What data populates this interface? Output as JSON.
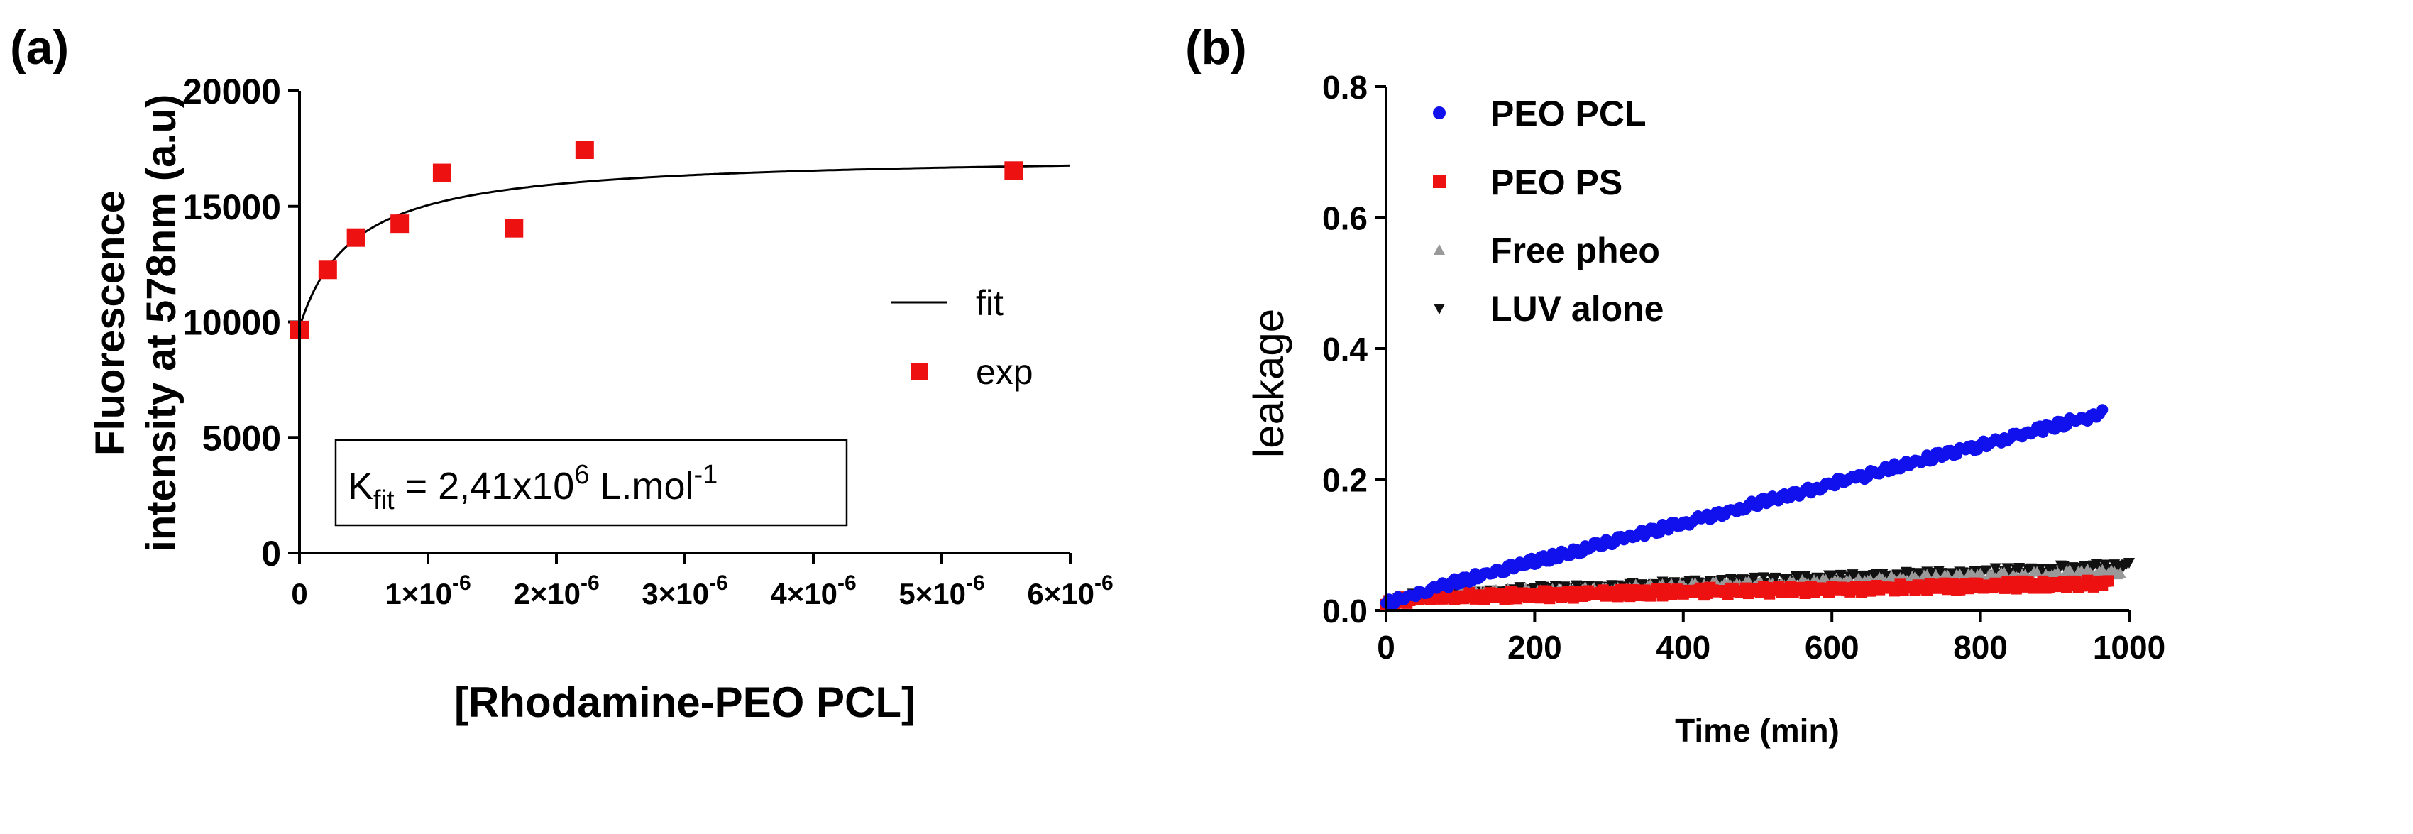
{
  "chart_data": [
    {
      "panel_label": "(a)",
      "type": "scatter",
      "xlabel": "[Rhodamine-PEO PCL]",
      "ylabel_line1": "Fluorescence",
      "ylabel_line2": "intensity at 578nm (a.u)",
      "xlim": [
        0,
        6e-06
      ],
      "ylim": [
        0,
        20000
      ],
      "xticks": [
        0,
        1e-06,
        2e-06,
        3e-06,
        4e-06,
        5e-06,
        6e-06
      ],
      "xtick_labels": [
        {
          "mant": "0",
          "exp": ""
        },
        {
          "mant": "1×10",
          "exp": "-6"
        },
        {
          "mant": "2×10",
          "exp": "-6"
        },
        {
          "mant": "3×10",
          "exp": "-6"
        },
        {
          "mant": "4×10",
          "exp": "-6"
        },
        {
          "mant": "5×10",
          "exp": "-6"
        },
        {
          "mant": "6×10",
          "exp": "-6"
        }
      ],
      "yticks": [
        0,
        5000,
        10000,
        15000,
        20000
      ],
      "ytick_labels": [
        "0",
        "5000",
        "10000",
        "15000",
        "20000"
      ],
      "series": [
        {
          "name": "exp",
          "kind": "markers",
          "marker": "square",
          "color": "#ee1111",
          "x": [
            0,
            2.2e-07,
            4.4e-07,
            7.8e-07,
            1.11e-06,
            1.67e-06,
            2.22e-06,
            5.56e-06
          ],
          "y": [
            9650,
            12250,
            13650,
            14250,
            16450,
            14050,
            17450,
            16550
          ]
        },
        {
          "name": "fit",
          "kind": "line",
          "color": "#000000",
          "model": "langmuir",
          "params": {
            "y0": 9750,
            "ymax": 7500,
            "K": 2410000
          }
        }
      ],
      "legend": {
        "position": "right",
        "entries": [
          "fit",
          "exp"
        ]
      },
      "annotation": {
        "prefix": "K",
        "sub": "fit",
        "mid": " = 2,41x10",
        "sup": "6",
        "unit": " L.mol",
        "unit_sup": "-1"
      }
    },
    {
      "panel_label": "(b)",
      "type": "scatter",
      "xlabel": "Time (min)",
      "ylabel": "leakage",
      "xlim": [
        0,
        1000
      ],
      "ylim": [
        0,
        0.8
      ],
      "xticks": [
        0,
        200,
        400,
        600,
        800,
        1000
      ],
      "xtick_labels": [
        "0",
        "200",
        "400",
        "600",
        "800",
        "1000"
      ],
      "yticks": [
        0,
        0.2,
        0.4,
        0.6,
        0.8
      ],
      "ytick_labels": [
        "0.0",
        "0.2",
        "0.4",
        "0.6",
        "0.8"
      ],
      "series": [
        {
          "name": "LUV alone",
          "marker": "triangle-down",
          "color": "#111111",
          "t_end": 1000,
          "trend": [
            [
              0,
              0.01
            ],
            [
              50,
              0.025
            ],
            [
              1000,
              0.068
            ]
          ]
        },
        {
          "name": "Free pheo",
          "marker": "triangle-up",
          "color": "#999999",
          "t_end": 990,
          "trend": [
            [
              0,
              0.01
            ],
            [
              50,
              0.022
            ],
            [
              1000,
              0.058
            ]
          ]
        },
        {
          "name": "PEO PS",
          "marker": "square",
          "color": "#ee1111",
          "t_end": 975,
          "trend": [
            [
              0,
              0.01
            ],
            [
              40,
              0.02
            ],
            [
              1000,
              0.042
            ]
          ]
        },
        {
          "name": "PEO PCL",
          "marker": "circle",
          "color": "#1111ee",
          "t_end": 965,
          "trend": [
            [
              0,
              0.01
            ],
            [
              50,
              0.028
            ],
            [
              100,
              0.045
            ],
            [
              1000,
              0.312
            ]
          ]
        }
      ],
      "legend": {
        "position": "top-left",
        "entries": [
          "PEO PCL",
          "PEO PS",
          "Free pheo",
          "LUV alone"
        ]
      }
    }
  ]
}
